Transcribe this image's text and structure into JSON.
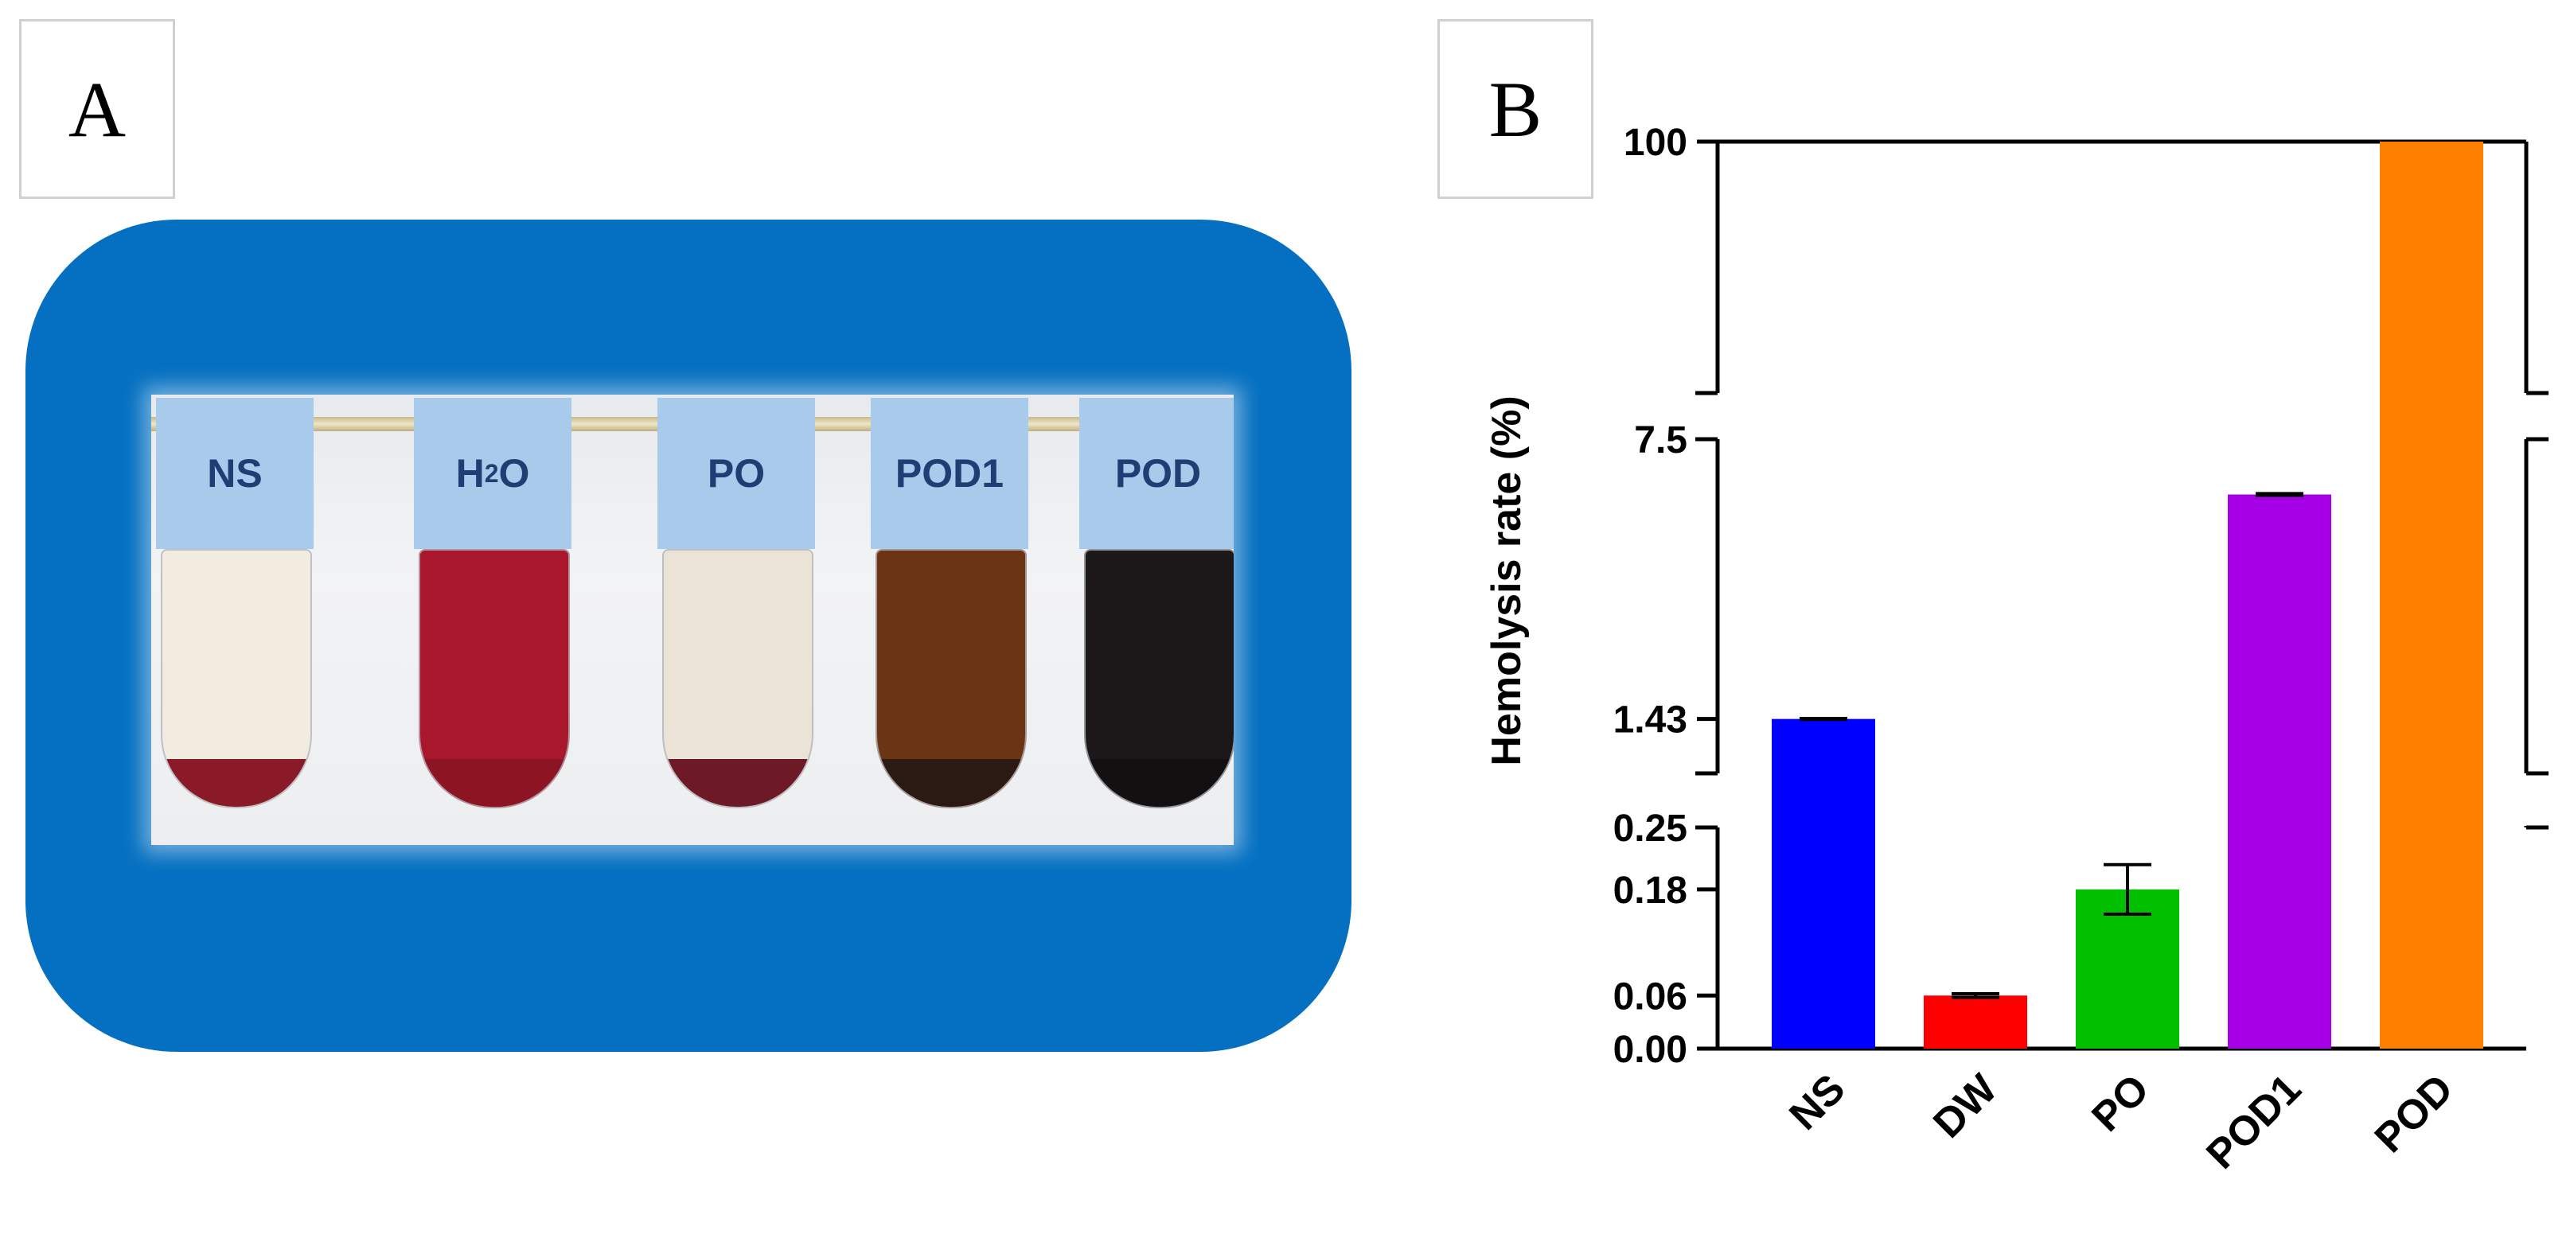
{
  "panels": {
    "a": "A",
    "b": "B"
  },
  "photo": {
    "tubes": [
      {
        "label": "NS",
        "liquid": "#f1ebe0",
        "pellet": "#8b1a28"
      },
      {
        "label_main": "H",
        "label_sub": "2",
        "label_end": "O",
        "liquid": "#a8172c",
        "pellet": "#8d1423"
      },
      {
        "label": "PO",
        "liquid": "#ebe3d6",
        "pellet": "#6e1a26"
      },
      {
        "label": "POD1",
        "liquid": "#6b3514",
        "pellet": "#2b1a14"
      },
      {
        "label": "POD",
        "liquid": "#1c1718",
        "pellet": "#131011"
      }
    ]
  },
  "chart_data": {
    "type": "bar",
    "ylabel": "Hemolysis rate (%)",
    "categories": [
      "NS",
      "DW",
      "PO",
      "POD1",
      "POD"
    ],
    "values": [
      1.43,
      0.06,
      0.18,
      6.3,
      100
    ],
    "errors": [
      0.01,
      0.002,
      0.028,
      0.02,
      0
    ],
    "colors": [
      "#0000ff",
      "#ff0000",
      "#00c000",
      "#a500e6",
      "#ff8000"
    ],
    "y_segments": [
      {
        "range": [
          0,
          0.25
        ],
        "ticks": [
          0,
          0.06,
          0.18
        ],
        "tick_labels": [
          "0.00",
          "0.06",
          "0.18"
        ]
      },
      {
        "range": [
          0.25,
          7.5
        ],
        "ticks": [
          0.25,
          1.43
        ],
        "tick_labels": [
          "0.25",
          "1.43"
        ]
      },
      {
        "range": [
          7.5,
          100
        ],
        "ticks": [
          7.5,
          100
        ],
        "tick_labels": [
          "7.5",
          "100"
        ]
      }
    ]
  }
}
